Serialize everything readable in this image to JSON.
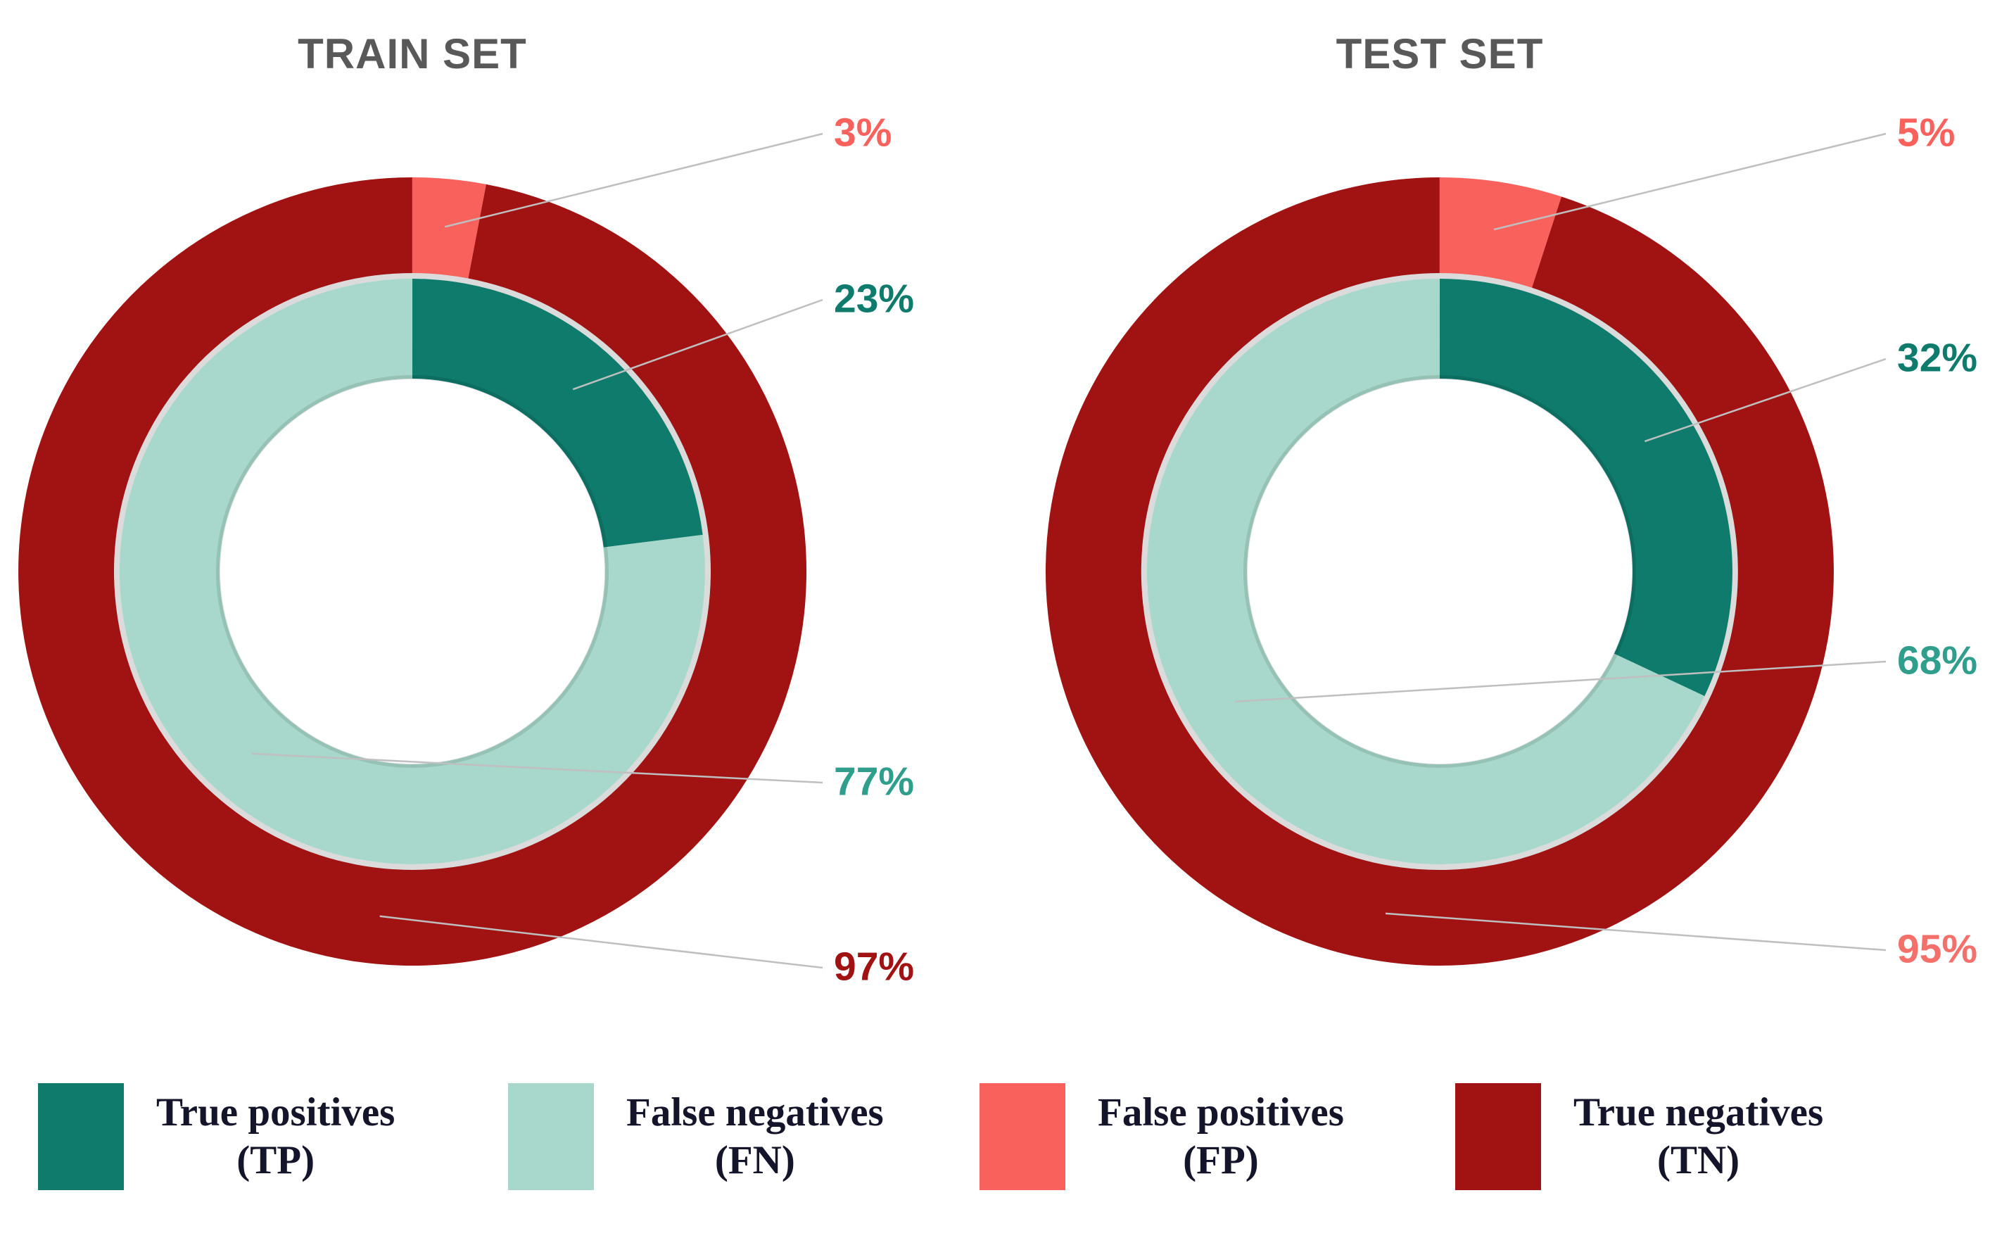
{
  "colors": {
    "true_positives": "#0e7b6c",
    "false_negatives": "#a8d8cb",
    "false_positives": "#f9615c",
    "true_negatives": "#a11212",
    "title_gray": "#595959",
    "leader_line": "#bfbfbf",
    "legend_text": "#14142a"
  },
  "legend": {
    "items": [
      {
        "line1": "True positives",
        "line2": "(TP)",
        "color": "#0e7b6c"
      },
      {
        "line1": "False negatives",
        "line2": "(FN)",
        "color": "#a8d8cb"
      },
      {
        "line1": "False positives",
        "line2": "(FP)",
        "color": "#f9615c"
      },
      {
        "line1": "True negatives",
        "line2": "(TN)",
        "color": "#a11212"
      }
    ]
  },
  "chart_data": [
    {
      "type": "donut",
      "title": "TRAIN SET",
      "unit": "%",
      "rings": [
        {
          "name": "outer",
          "series": [
            {
              "name": "False positives (FP)",
              "value": 3,
              "display": "3%",
              "color": "#f9615c",
              "label_color": "#f9615c"
            },
            {
              "name": "True negatives (TN)",
              "value": 97,
              "display": "97%",
              "color": "#a11212",
              "label_color": "#a11212"
            }
          ]
        },
        {
          "name": "inner",
          "series": [
            {
              "name": "True positives (TP)",
              "value": 23,
              "display": "23%",
              "color": "#0e7b6c",
              "label_color": "#0e7b6c"
            },
            {
              "name": "False negatives (FN)",
              "value": 77,
              "display": "77%",
              "color": "#a8d8cb",
              "label_color": "#2f9e8c"
            }
          ]
        }
      ]
    },
    {
      "type": "donut",
      "title": "TEST SET",
      "unit": "%",
      "rings": [
        {
          "name": "outer",
          "series": [
            {
              "name": "False positives (FP)",
              "value": 5,
              "display": "5%",
              "color": "#f9615c",
              "label_color": "#f9615c"
            },
            {
              "name": "True negatives (TN)",
              "value": 95,
              "display": "95%",
              "color": "#a11212",
              "label_color": "#f4706a"
            }
          ]
        },
        {
          "name": "inner",
          "series": [
            {
              "name": "True positives (TP)",
              "value": 32,
              "display": "32%",
              "color": "#0e7b6c",
              "label_color": "#0e7b6c"
            },
            {
              "name": "False negatives (FN)",
              "value": 68,
              "display": "68%",
              "color": "#a8d8cb",
              "label_color": "#2f9e8c"
            }
          ]
        }
      ]
    }
  ]
}
